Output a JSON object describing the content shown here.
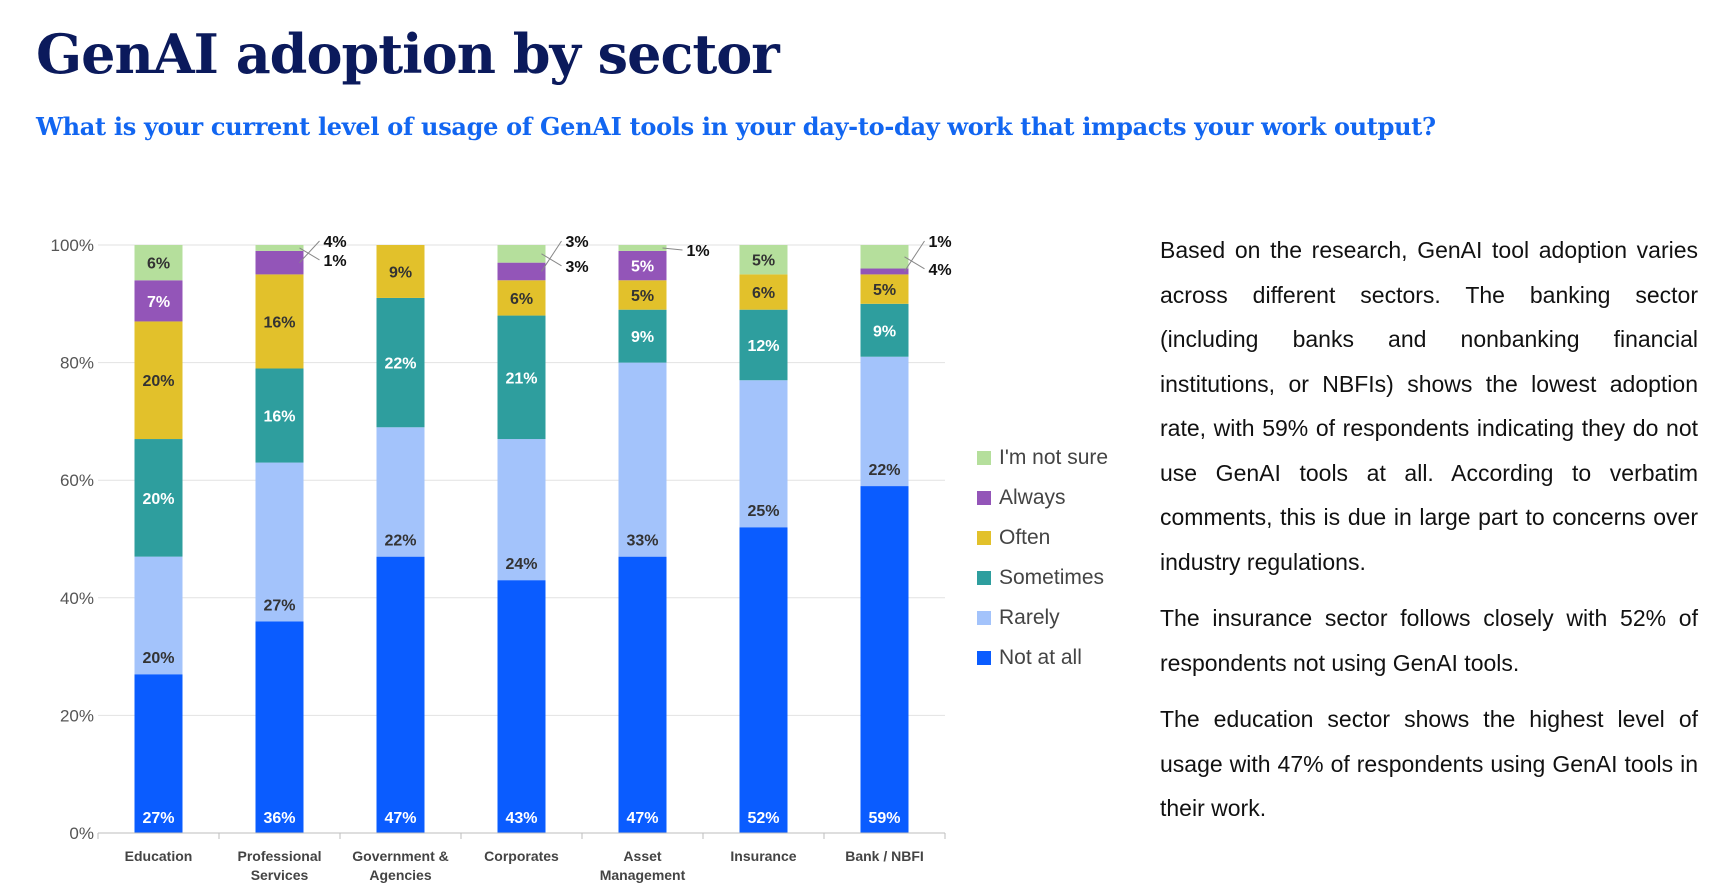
{
  "header": {
    "title": "GenAI adoption by sector",
    "subtitle": "What is your current level of usage of GenAI tools in your day-to-day work that impacts your work output?"
  },
  "chart_data": {
    "type": "bar",
    "stacked": true,
    "categories": [
      "Education",
      "Professional Services",
      "Government & Agencies",
      "Corporates",
      "Asset Management",
      "Insurance",
      "Bank / NBFI"
    ],
    "category_lines": [
      [
        "Education"
      ],
      [
        "Professional",
        "Services"
      ],
      [
        "Government &",
        "Agencies"
      ],
      [
        "Corporates"
      ],
      [
        "Asset",
        "Management"
      ],
      [
        "Insurance"
      ],
      [
        "Bank / NBFI"
      ]
    ],
    "series": [
      {
        "name": "Not at all",
        "color": "#0a5cff",
        "label_color": "#ffffff",
        "values": [
          27,
          36,
          47,
          43,
          47,
          52,
          59
        ]
      },
      {
        "name": "Rarely",
        "color": "#a3c3fb",
        "label_color": "#333333",
        "values": [
          20,
          27,
          22,
          24,
          33,
          25,
          22
        ]
      },
      {
        "name": "Sometimes",
        "color": "#2e9e9e",
        "label_color": "#ffffff",
        "values": [
          20,
          16,
          22,
          21,
          9,
          12,
          9
        ]
      },
      {
        "name": "Often",
        "color": "#e2c12b",
        "label_color": "#333333",
        "values": [
          20,
          16,
          9,
          6,
          5,
          6,
          5
        ]
      },
      {
        "name": "Always",
        "color": "#9355b8",
        "label_color": "#ffffff",
        "values": [
          7,
          4,
          0,
          3,
          5,
          0,
          1
        ]
      },
      {
        "name": "I'm not sure",
        "color": "#b5df9c",
        "label_color": "#333333",
        "values": [
          6,
          1,
          0,
          3,
          1,
          5,
          4
        ]
      }
    ],
    "ytick_labels": [
      "0%",
      "20%",
      "40%",
      "60%",
      "80%",
      "100%"
    ],
    "ylim": [
      0,
      100
    ],
    "grid": true,
    "legend_position": "right",
    "xlabel": "",
    "ylabel": ""
  },
  "body": {
    "paragraphs": [
      "Based on the research, GenAI tool adoption varies across different sectors. The banking sector (including banks and nonbanking financial institutions, or NBFIs) shows the lowest adoption rate, with 59% of respondents indicating they do not use GenAI tools at all. According to verbatim comments, this is due in large part to concerns over industry regulations.",
      "The insurance sector follows closely with 52% of respondents not using GenAI tools.",
      "The education sector shows the highest level of usage with 47% of respondents using GenAI tools in their work."
    ]
  }
}
